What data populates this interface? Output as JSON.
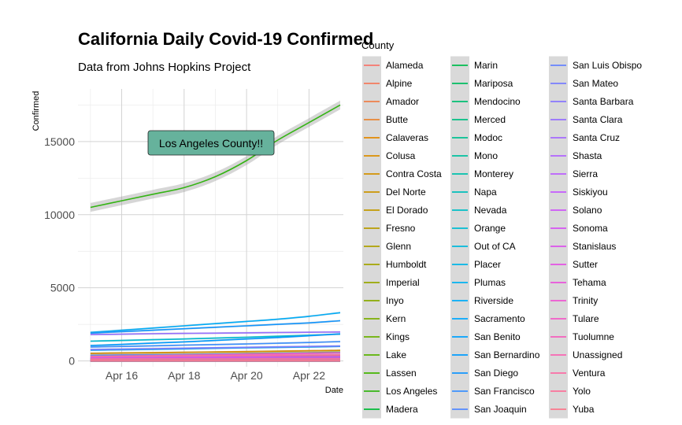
{
  "chart_data": {
    "type": "line",
    "title": "California Daily Covid-19 Confirmed",
    "subtitle": "Data from Johns Hopkins Project",
    "xlabel": "Date",
    "ylabel": "Confirmed",
    "x_ticks": [
      "Apr 16",
      "Apr 18",
      "Apr 20",
      "Apr 22"
    ],
    "x_tick_days": [
      16,
      18,
      20,
      22
    ],
    "xlim": [
      14.6,
      23.1
    ],
    "y_ticks": [
      "0",
      "5000",
      "10000",
      "15000"
    ],
    "y_tick_values": [
      0,
      5000,
      10000,
      15000
    ],
    "ylim": [
      -400,
      18600
    ],
    "grid": true,
    "legend_title": "County",
    "legend_position": "right",
    "annotation": "Los Angeles County!!",
    "x": [
      15,
      16,
      17,
      18,
      19,
      20,
      21,
      22,
      23
    ],
    "series": [
      {
        "name": "Alameda",
        "color": "#F8766D",
        "values": [
          510,
          530,
          555,
          580,
          605,
          630,
          660,
          690,
          720
        ]
      },
      {
        "name": "Alpine",
        "color": "#F47B5C",
        "values": [
          1,
          1,
          1,
          1,
          1,
          1,
          1,
          1,
          1
        ]
      },
      {
        "name": "Amador",
        "color": "#EF7F49",
        "values": [
          5,
          5,
          6,
          6,
          7,
          7,
          8,
          8,
          8
        ]
      },
      {
        "name": "Butte",
        "color": "#E98532",
        "values": [
          17,
          17,
          18,
          18,
          18,
          19,
          19,
          20,
          20
        ]
      },
      {
        "name": "Calaveras",
        "color": "#E38900",
        "values": [
          9,
          10,
          10,
          10,
          11,
          11,
          11,
          12,
          12
        ]
      },
      {
        "name": "Colusa",
        "color": "#DB8E00",
        "values": [
          3,
          3,
          3,
          3,
          3,
          3,
          3,
          3,
          3
        ]
      },
      {
        "name": "Contra Costa",
        "color": "#D39200",
        "values": [
          520,
          545,
          565,
          590,
          610,
          640,
          665,
          690,
          720
        ]
      },
      {
        "name": "Del Norte",
        "color": "#CB9600",
        "values": [
          4,
          4,
          4,
          4,
          4,
          4,
          4,
          4,
          4
        ]
      },
      {
        "name": "El Dorado",
        "color": "#C29A00",
        "values": [
          44,
          46,
          47,
          48,
          49,
          50,
          51,
          52,
          53
        ]
      },
      {
        "name": "Fresno",
        "color": "#B89D00",
        "values": [
          200,
          215,
          230,
          250,
          270,
          290,
          310,
          335,
          360
        ]
      },
      {
        "name": "Glenn",
        "color": "#AEA100",
        "values": [
          4,
          4,
          4,
          4,
          4,
          4,
          4,
          4,
          4
        ]
      },
      {
        "name": "Humboldt",
        "color": "#A3A400",
        "values": [
          50,
          51,
          52,
          53,
          54,
          54,
          55,
          55,
          56
        ]
      },
      {
        "name": "Imperial",
        "color": "#97A700",
        "values": [
          120,
          140,
          160,
          180,
          195,
          210,
          230,
          250,
          270
        ]
      },
      {
        "name": "Inyo",
        "color": "#8AAA00",
        "values": [
          13,
          14,
          15,
          16,
          17,
          18,
          19,
          20,
          21
        ]
      },
      {
        "name": "Kern",
        "color": "#7CAE00",
        "values": [
          390,
          410,
          430,
          450,
          480,
          510,
          540,
          570,
          600
        ]
      },
      {
        "name": "Kings",
        "color": "#6CB100",
        "values": [
          60,
          65,
          70,
          75,
          80,
          85,
          90,
          95,
          100
        ]
      },
      {
        "name": "Lake",
        "color": "#5AB300",
        "values": [
          8,
          8,
          9,
          9,
          9,
          10,
          10,
          10,
          10
        ]
      },
      {
        "name": "Lassen",
        "color": "#44B600",
        "values": [
          0,
          0,
          0,
          0,
          0,
          0,
          0,
          0,
          0
        ]
      },
      {
        "name": "Los Angeles",
        "color": "#34B414",
        "values": [
          10500,
          10950,
          11400,
          11850,
          12600,
          13700,
          15100,
          16300,
          17500
        ]
      },
      {
        "name": "Madera",
        "color": "#00BA38",
        "values": [
          30,
          31,
          32,
          33,
          34,
          35,
          36,
          37,
          38
        ]
      },
      {
        "name": "Marin",
        "color": "#00BC4E",
        "values": [
          180,
          185,
          190,
          195,
          200,
          205,
          210,
          215,
          220
        ]
      },
      {
        "name": "Mariposa",
        "color": "#00BD61",
        "values": [
          1,
          1,
          1,
          1,
          1,
          1,
          1,
          1,
          1
        ]
      },
      {
        "name": "Mendocino",
        "color": "#00BE72",
        "values": [
          7,
          7,
          8,
          8,
          8,
          9,
          9,
          9,
          9
        ]
      },
      {
        "name": "Merced",
        "color": "#00BF82",
        "values": [
          80,
          85,
          90,
          95,
          100,
          105,
          110,
          115,
          120
        ]
      },
      {
        "name": "Modoc",
        "color": "#00C091",
        "values": [
          0,
          0,
          0,
          0,
          0,
          0,
          0,
          0,
          0
        ]
      },
      {
        "name": "Mono",
        "color": "#00C09F",
        "values": [
          25,
          25,
          26,
          26,
          27,
          27,
          28,
          28,
          29
        ]
      },
      {
        "name": "Monterey",
        "color": "#00C0AD",
        "values": [
          150,
          160,
          170,
          180,
          190,
          200,
          210,
          220,
          230
        ]
      },
      {
        "name": "Napa",
        "color": "#00BFBA",
        "values": [
          55,
          57,
          60,
          62,
          64,
          66,
          68,
          70,
          72
        ]
      },
      {
        "name": "Nevada",
        "color": "#00BEC6",
        "values": [
          35,
          36,
          37,
          38,
          39,
          40,
          40,
          41,
          41
        ]
      },
      {
        "name": "Orange",
        "color": "#00BCD2",
        "values": [
          1350,
          1400,
          1450,
          1500,
          1560,
          1620,
          1690,
          1760,
          1830
        ]
      },
      {
        "name": "Out of CA",
        "color": "#00B9DD",
        "values": [
          0,
          0,
          0,
          0,
          0,
          0,
          0,
          0,
          0
        ]
      },
      {
        "name": "Placer",
        "color": "#00B6E7",
        "values": [
          140,
          145,
          150,
          155,
          160,
          165,
          170,
          175,
          180
        ]
      },
      {
        "name": "Plumas",
        "color": "#00B2F1",
        "values": [
          4,
          4,
          4,
          4,
          4,
          4,
          4,
          4,
          4
        ]
      },
      {
        "name": "Riverside",
        "color": "#00ADF9",
        "values": [
          1950,
          2100,
          2250,
          2400,
          2550,
          2700,
          2850,
          3050,
          3300
        ]
      },
      {
        "name": "Sacramento",
        "color": "#00A8FF",
        "values": [
          730,
          760,
          790,
          820,
          860,
          890,
          920,
          950,
          990
        ]
      },
      {
        "name": "San Benito",
        "color": "#00A2FF",
        "values": [
          40,
          41,
          42,
          43,
          44,
          45,
          46,
          47,
          48
        ]
      },
      {
        "name": "San Bernardino",
        "color": "#009CFF",
        "values": [
          1050,
          1130,
          1220,
          1300,
          1400,
          1500,
          1600,
          1720,
          1850
        ]
      },
      {
        "name": "San Diego",
        "color": "#1296FF",
        "values": [
          1900,
          2000,
          2100,
          2200,
          2300,
          2400,
          2500,
          2600,
          2750
        ]
      },
      {
        "name": "San Francisco",
        "color": "#3B90FF",
        "values": [
          950,
          990,
          1030,
          1080,
          1120,
          1160,
          1210,
          1260,
          1320
        ]
      },
      {
        "name": "San Joaquin",
        "color": "#5389FF",
        "values": [
          380,
          400,
          420,
          440,
          460,
          480,
          500,
          520,
          540
        ]
      },
      {
        "name": "San Luis Obispo",
        "color": "#6683FF",
        "values": [
          140,
          145,
          150,
          155,
          160,
          165,
          170,
          175,
          180
        ]
      },
      {
        "name": "San Mateo",
        "color": "#787CFF",
        "values": [
          780,
          810,
          840,
          870,
          900,
          930,
          960,
          990,
          1020
        ]
      },
      {
        "name": "Santa Barbara",
        "color": "#8876FF",
        "values": [
          320,
          350,
          380,
          410,
          450,
          480,
          510,
          540,
          570
        ]
      },
      {
        "name": "Santa Clara",
        "color": "#966FFF",
        "values": [
          1800,
          1830,
          1860,
          1880,
          1900,
          1920,
          1940,
          1960,
          1980
        ]
      },
      {
        "name": "Santa Cruz",
        "color": "#A469FF",
        "values": [
          100,
          105,
          110,
          115,
          120,
          123,
          126,
          130,
          135
        ]
      },
      {
        "name": "Shasta",
        "color": "#B063FF",
        "values": [
          28,
          29,
          29,
          30,
          30,
          31,
          31,
          32,
          32
        ]
      },
      {
        "name": "Sierra",
        "color": "#BB5EFF",
        "values": [
          0,
          0,
          0,
          0,
          0,
          0,
          0,
          0,
          0
        ]
      },
      {
        "name": "Siskiyou",
        "color": "#C459FF",
        "values": [
          5,
          5,
          5,
          5,
          5,
          5,
          5,
          5,
          5
        ]
      },
      {
        "name": "Solano",
        "color": "#CE55F9",
        "values": [
          140,
          145,
          150,
          155,
          160,
          165,
          170,
          175,
          180
        ]
      },
      {
        "name": "Sonoma",
        "color": "#D652F3",
        "values": [
          160,
          165,
          170,
          175,
          180,
          185,
          190,
          195,
          200
        ]
      },
      {
        "name": "Stanislaus",
        "color": "#DD51EC",
        "values": [
          230,
          240,
          250,
          260,
          270,
          280,
          290,
          300,
          310
        ]
      },
      {
        "name": "Sutter",
        "color": "#E451E4",
        "values": [
          25,
          26,
          27,
          28,
          29,
          30,
          31,
          32,
          33
        ]
      },
      {
        "name": "Tehama",
        "color": "#EA52DB",
        "values": [
          1,
          1,
          1,
          1,
          1,
          1,
          1,
          1,
          1
        ]
      },
      {
        "name": "Trinity",
        "color": "#EF55D2",
        "values": [
          1,
          1,
          1,
          1,
          1,
          1,
          1,
          1,
          1
        ]
      },
      {
        "name": "Tulare",
        "color": "#F35AC8",
        "values": [
          300,
          330,
          360,
          390,
          420,
          450,
          480,
          510,
          540
        ]
      },
      {
        "name": "Tuolumne",
        "color": "#F65FBD",
        "values": [
          3,
          3,
          3,
          3,
          3,
          3,
          3,
          3,
          3
        ]
      },
      {
        "name": "Unassigned",
        "color": "#F966B2",
        "values": [
          0,
          0,
          0,
          0,
          0,
          0,
          0,
          0,
          0
        ]
      },
      {
        "name": "Ventura",
        "color": "#FB6CA6",
        "values": [
          300,
          315,
          330,
          345,
          360,
          375,
          390,
          405,
          420
        ]
      },
      {
        "name": "Yolo",
        "color": "#FC729A",
        "values": [
          130,
          132,
          134,
          136,
          138,
          140,
          142,
          144,
          146
        ]
      },
      {
        "name": "Yuba",
        "color": "#FB778D",
        "values": [
          20,
          21,
          22,
          23,
          24,
          25,
          26,
          27,
          28
        ]
      }
    ]
  }
}
